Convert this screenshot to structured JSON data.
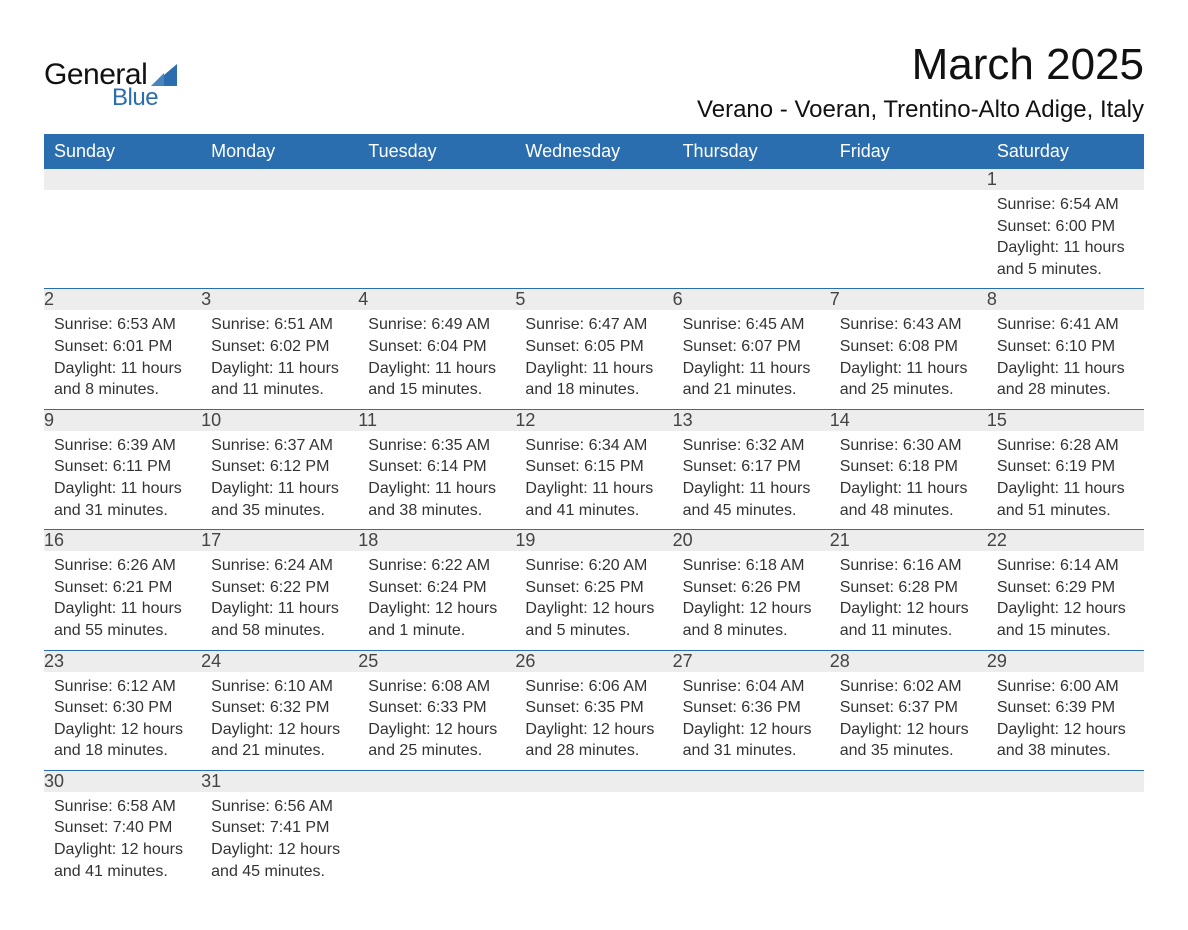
{
  "logo": {
    "general": "General",
    "blue": "Blue"
  },
  "title": "March 2025",
  "location": "Verano - Voeran, Trentino-Alto Adige, Italy",
  "weekdays": [
    "Sunday",
    "Monday",
    "Tuesday",
    "Wednesday",
    "Thursday",
    "Friday",
    "Saturday"
  ],
  "colors": {
    "header_bg": "#2a6eb0",
    "header_text": "#ffffff",
    "daynum_bg": "#ededed",
    "row_divider": "#2a6eb0",
    "text": "#333333",
    "logo_blue": "#2a6eb0"
  },
  "typography": {
    "title_fontsize": 44,
    "location_fontsize": 24,
    "weekday_fontsize": 18,
    "daynum_fontsize": 18,
    "body_fontsize": 16
  },
  "layout": {
    "columns": 7,
    "rows": 6,
    "start_weekday": "Sunday"
  },
  "weeks": [
    [
      null,
      null,
      null,
      null,
      null,
      null,
      {
        "n": "1",
        "sunrise": "Sunrise: 6:54 AM",
        "sunset": "Sunset: 6:00 PM",
        "day1": "Daylight: 11 hours",
        "day2": "and 5 minutes."
      }
    ],
    [
      {
        "n": "2",
        "sunrise": "Sunrise: 6:53 AM",
        "sunset": "Sunset: 6:01 PM",
        "day1": "Daylight: 11 hours",
        "day2": "and 8 minutes."
      },
      {
        "n": "3",
        "sunrise": "Sunrise: 6:51 AM",
        "sunset": "Sunset: 6:02 PM",
        "day1": "Daylight: 11 hours",
        "day2": "and 11 minutes."
      },
      {
        "n": "4",
        "sunrise": "Sunrise: 6:49 AM",
        "sunset": "Sunset: 6:04 PM",
        "day1": "Daylight: 11 hours",
        "day2": "and 15 minutes."
      },
      {
        "n": "5",
        "sunrise": "Sunrise: 6:47 AM",
        "sunset": "Sunset: 6:05 PM",
        "day1": "Daylight: 11 hours",
        "day2": "and 18 minutes."
      },
      {
        "n": "6",
        "sunrise": "Sunrise: 6:45 AM",
        "sunset": "Sunset: 6:07 PM",
        "day1": "Daylight: 11 hours",
        "day2": "and 21 minutes."
      },
      {
        "n": "7",
        "sunrise": "Sunrise: 6:43 AM",
        "sunset": "Sunset: 6:08 PM",
        "day1": "Daylight: 11 hours",
        "day2": "and 25 minutes."
      },
      {
        "n": "8",
        "sunrise": "Sunrise: 6:41 AM",
        "sunset": "Sunset: 6:10 PM",
        "day1": "Daylight: 11 hours",
        "day2": "and 28 minutes."
      }
    ],
    [
      {
        "n": "9",
        "sunrise": "Sunrise: 6:39 AM",
        "sunset": "Sunset: 6:11 PM",
        "day1": "Daylight: 11 hours",
        "day2": "and 31 minutes."
      },
      {
        "n": "10",
        "sunrise": "Sunrise: 6:37 AM",
        "sunset": "Sunset: 6:12 PM",
        "day1": "Daylight: 11 hours",
        "day2": "and 35 minutes."
      },
      {
        "n": "11",
        "sunrise": "Sunrise: 6:35 AM",
        "sunset": "Sunset: 6:14 PM",
        "day1": "Daylight: 11 hours",
        "day2": "and 38 minutes."
      },
      {
        "n": "12",
        "sunrise": "Sunrise: 6:34 AM",
        "sunset": "Sunset: 6:15 PM",
        "day1": "Daylight: 11 hours",
        "day2": "and 41 minutes."
      },
      {
        "n": "13",
        "sunrise": "Sunrise: 6:32 AM",
        "sunset": "Sunset: 6:17 PM",
        "day1": "Daylight: 11 hours",
        "day2": "and 45 minutes."
      },
      {
        "n": "14",
        "sunrise": "Sunrise: 6:30 AM",
        "sunset": "Sunset: 6:18 PM",
        "day1": "Daylight: 11 hours",
        "day2": "and 48 minutes."
      },
      {
        "n": "15",
        "sunrise": "Sunrise: 6:28 AM",
        "sunset": "Sunset: 6:19 PM",
        "day1": "Daylight: 11 hours",
        "day2": "and 51 minutes."
      }
    ],
    [
      {
        "n": "16",
        "sunrise": "Sunrise: 6:26 AM",
        "sunset": "Sunset: 6:21 PM",
        "day1": "Daylight: 11 hours",
        "day2": "and 55 minutes."
      },
      {
        "n": "17",
        "sunrise": "Sunrise: 6:24 AM",
        "sunset": "Sunset: 6:22 PM",
        "day1": "Daylight: 11 hours",
        "day2": "and 58 minutes."
      },
      {
        "n": "18",
        "sunrise": "Sunrise: 6:22 AM",
        "sunset": "Sunset: 6:24 PM",
        "day1": "Daylight: 12 hours",
        "day2": "and 1 minute."
      },
      {
        "n": "19",
        "sunrise": "Sunrise: 6:20 AM",
        "sunset": "Sunset: 6:25 PM",
        "day1": "Daylight: 12 hours",
        "day2": "and 5 minutes."
      },
      {
        "n": "20",
        "sunrise": "Sunrise: 6:18 AM",
        "sunset": "Sunset: 6:26 PM",
        "day1": "Daylight: 12 hours",
        "day2": "and 8 minutes."
      },
      {
        "n": "21",
        "sunrise": "Sunrise: 6:16 AM",
        "sunset": "Sunset: 6:28 PM",
        "day1": "Daylight: 12 hours",
        "day2": "and 11 minutes."
      },
      {
        "n": "22",
        "sunrise": "Sunrise: 6:14 AM",
        "sunset": "Sunset: 6:29 PM",
        "day1": "Daylight: 12 hours",
        "day2": "and 15 minutes."
      }
    ],
    [
      {
        "n": "23",
        "sunrise": "Sunrise: 6:12 AM",
        "sunset": "Sunset: 6:30 PM",
        "day1": "Daylight: 12 hours",
        "day2": "and 18 minutes."
      },
      {
        "n": "24",
        "sunrise": "Sunrise: 6:10 AM",
        "sunset": "Sunset: 6:32 PM",
        "day1": "Daylight: 12 hours",
        "day2": "and 21 minutes."
      },
      {
        "n": "25",
        "sunrise": "Sunrise: 6:08 AM",
        "sunset": "Sunset: 6:33 PM",
        "day1": "Daylight: 12 hours",
        "day2": "and 25 minutes."
      },
      {
        "n": "26",
        "sunrise": "Sunrise: 6:06 AM",
        "sunset": "Sunset: 6:35 PM",
        "day1": "Daylight: 12 hours",
        "day2": "and 28 minutes."
      },
      {
        "n": "27",
        "sunrise": "Sunrise: 6:04 AM",
        "sunset": "Sunset: 6:36 PM",
        "day1": "Daylight: 12 hours",
        "day2": "and 31 minutes."
      },
      {
        "n": "28",
        "sunrise": "Sunrise: 6:02 AM",
        "sunset": "Sunset: 6:37 PM",
        "day1": "Daylight: 12 hours",
        "day2": "and 35 minutes."
      },
      {
        "n": "29",
        "sunrise": "Sunrise: 6:00 AM",
        "sunset": "Sunset: 6:39 PM",
        "day1": "Daylight: 12 hours",
        "day2": "and 38 minutes."
      }
    ],
    [
      {
        "n": "30",
        "sunrise": "Sunrise: 6:58 AM",
        "sunset": "Sunset: 7:40 PM",
        "day1": "Daylight: 12 hours",
        "day2": "and 41 minutes."
      },
      {
        "n": "31",
        "sunrise": "Sunrise: 6:56 AM",
        "sunset": "Sunset: 7:41 PM",
        "day1": "Daylight: 12 hours",
        "day2": "and 45 minutes."
      },
      null,
      null,
      null,
      null,
      null
    ]
  ]
}
